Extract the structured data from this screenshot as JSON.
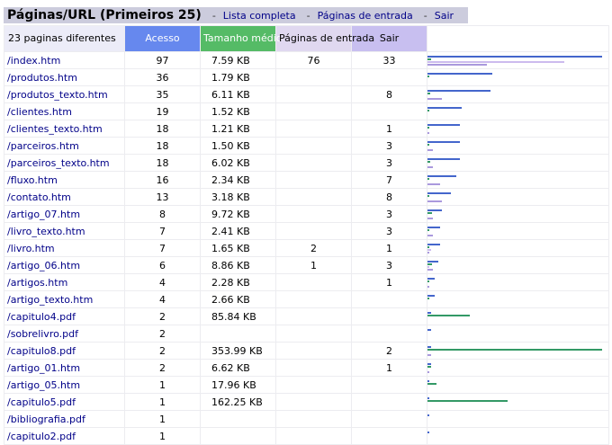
{
  "header": {
    "title": "Páginas/URL (Primeiros 25)",
    "sep": "-",
    "links": [
      "Lista completa",
      "Páginas de entrada",
      "Sair"
    ]
  },
  "columns": {
    "pages": "23 paginas diferentes",
    "acesso": "Acesso",
    "tamanho": "Tamanho médio",
    "entrada": "Páginas de entrada",
    "sair": "Sair"
  },
  "colors": {
    "acesso": "#6688ee",
    "tamanho": "#55bb66",
    "entrada": "#e0d8f0",
    "sair": "#c8bff0"
  },
  "rows": [
    {
      "url": "/index.htm",
      "acesso": "97",
      "tamanho": "7.59 KB",
      "entrada": "76",
      "sair": "33"
    },
    {
      "url": "/produtos.htm",
      "acesso": "36",
      "tamanho": "1.79 KB",
      "entrada": "",
      "sair": ""
    },
    {
      "url": "/produtos_texto.htm",
      "acesso": "35",
      "tamanho": "6.11 KB",
      "entrada": "",
      "sair": "8"
    },
    {
      "url": "/clientes.htm",
      "acesso": "19",
      "tamanho": "1.52 KB",
      "entrada": "",
      "sair": ""
    },
    {
      "url": "/clientes_texto.htm",
      "acesso": "18",
      "tamanho": "1.21 KB",
      "entrada": "",
      "sair": "1"
    },
    {
      "url": "/parceiros.htm",
      "acesso": "18",
      "tamanho": "1.50 KB",
      "entrada": "",
      "sair": "3"
    },
    {
      "url": "/parceiros_texto.htm",
      "acesso": "18",
      "tamanho": "6.02 KB",
      "entrada": "",
      "sair": "3"
    },
    {
      "url": "/fluxo.htm",
      "acesso": "16",
      "tamanho": "2.34 KB",
      "entrada": "",
      "sair": "7"
    },
    {
      "url": "/contato.htm",
      "acesso": "13",
      "tamanho": "3.18 KB",
      "entrada": "",
      "sair": "8"
    },
    {
      "url": "/artigo_07.htm",
      "acesso": "8",
      "tamanho": "9.72 KB",
      "entrada": "",
      "sair": "3"
    },
    {
      "url": "/livro_texto.htm",
      "acesso": "7",
      "tamanho": "2.41 KB",
      "entrada": "",
      "sair": "3"
    },
    {
      "url": "/livro.htm",
      "acesso": "7",
      "tamanho": "1.65 KB",
      "entrada": "2",
      "sair": "1"
    },
    {
      "url": "/artigo_06.htm",
      "acesso": "6",
      "tamanho": "8.86 KB",
      "entrada": "1",
      "sair": "3"
    },
    {
      "url": "/artigos.htm",
      "acesso": "4",
      "tamanho": "2.28 KB",
      "entrada": "",
      "sair": "1"
    },
    {
      "url": "/artigo_texto.htm",
      "acesso": "4",
      "tamanho": "2.66 KB",
      "entrada": "",
      "sair": ""
    },
    {
      "url": "/capitulo4.pdf",
      "acesso": "2",
      "tamanho": "85.84 KB",
      "entrada": "",
      "sair": ""
    },
    {
      "url": "/sobrelivro.pdf",
      "acesso": "2",
      "tamanho": "",
      "entrada": "",
      "sair": ""
    },
    {
      "url": "/capitulo8.pdf",
      "acesso": "2",
      "tamanho": "353.99 KB",
      "entrada": "",
      "sair": "2"
    },
    {
      "url": "/artigo_01.htm",
      "acesso": "2",
      "tamanho": "6.62 KB",
      "entrada": "",
      "sair": "1"
    },
    {
      "url": "/artigo_05.htm",
      "acesso": "1",
      "tamanho": "17.96 KB",
      "entrada": "",
      "sair": ""
    },
    {
      "url": "/capitulo5.pdf",
      "acesso": "1",
      "tamanho": "162.25 KB",
      "entrada": "",
      "sair": ""
    },
    {
      "url": "/bibliografia.pdf",
      "acesso": "1",
      "tamanho": "",
      "entrada": "",
      "sair": ""
    },
    {
      "url": "/capitulo2.pdf",
      "acesso": "1",
      "tamanho": "",
      "entrada": "",
      "sair": ""
    }
  ]
}
